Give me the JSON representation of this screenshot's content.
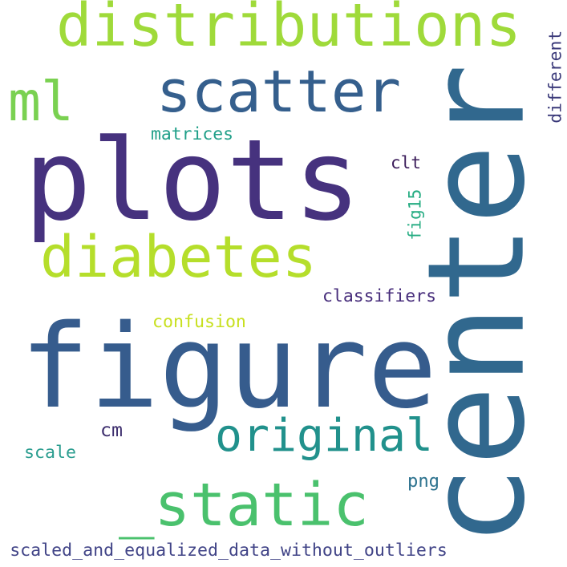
{
  "word_cloud": {
    "background_color": "#ffffff",
    "words": [
      {
        "text": "plots",
        "color": "#46327e"
      },
      {
        "text": "figure",
        "color": "#365c8d"
      },
      {
        "text": "center",
        "color": "#31688e"
      },
      {
        "text": "distributions",
        "color": "#9fda3a"
      },
      {
        "text": "scatter",
        "color": "#355f8d"
      },
      {
        "text": "diabetes",
        "color": "#b5de2b"
      },
      {
        "text": "ml",
        "color": "#7ad151"
      },
      {
        "text": "_static",
        "color": "#4ac16d"
      },
      {
        "text": "original",
        "color": "#21918c"
      },
      {
        "text": "matrices",
        "color": "#1f9f88"
      },
      {
        "text": "clt",
        "color": "#3b1c5a"
      },
      {
        "text": "fig15",
        "color": "#25ac82"
      },
      {
        "text": "classifiers",
        "color": "#472d7b"
      },
      {
        "text": "confusion",
        "color": "#c8e020"
      },
      {
        "text": "cm",
        "color": "#3e2f6e"
      },
      {
        "text": "scale",
        "color": "#2a9d8f"
      },
      {
        "text": "png",
        "color": "#2c728e"
      },
      {
        "text": "different",
        "color": "#3b3a7a"
      },
      {
        "text": "scaled_and_equalized_data_without_outliers",
        "color": "#414487"
      }
    ]
  }
}
